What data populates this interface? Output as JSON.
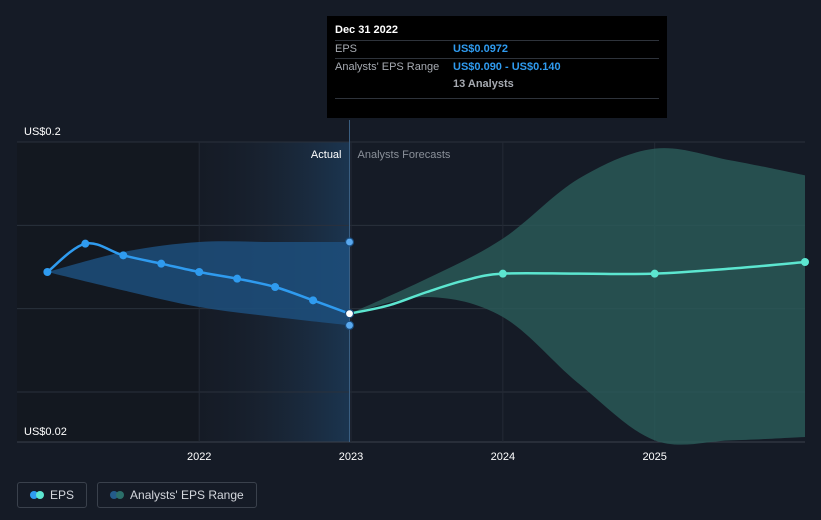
{
  "chart_data": {
    "type": "line",
    "title": "",
    "ylim": [
      0.02,
      0.2
    ],
    "y_labels": {
      "top": "US$0.2",
      "bottom": "US$0.02"
    },
    "x_ticks": [
      {
        "label": "2022",
        "x": 2022.0
      },
      {
        "label": "2023",
        "x": 2023.0
      },
      {
        "label": "2024",
        "x": 2024.0
      },
      {
        "label": "2025",
        "x": 2025.0
      }
    ],
    "xlim": [
      2020.8,
      2025.99
    ],
    "sections": {
      "actual": "Actual",
      "forecast": "Analysts Forecasts"
    },
    "series": [
      {
        "name": "EPS",
        "color": "#2f9bef",
        "x": [
          2021.0,
          2021.25,
          2021.5,
          2021.75,
          2022.0,
          2022.25,
          2022.5,
          2022.75
        ],
        "y": [
          0.122,
          0.139,
          0.132,
          0.127,
          0.122,
          0.118,
          0.113,
          0.105
        ]
      },
      {
        "name": "EPS forecast",
        "color": "#5ce6d0",
        "x": [
          2022.99,
          2023.25,
          2023.5,
          2023.75,
          2024.0,
          2024.5,
          2025.0,
          2025.5,
          2025.99
        ],
        "y": [
          0.097,
          0.102,
          0.11,
          0.117,
          0.121,
          0.121,
          0.121,
          0.124,
          0.128
        ],
        "marker_x": [
          2024.0,
          2025.0,
          2025.99
        ]
      }
    ],
    "actual_range": {
      "x": [
        2021.0,
        2021.5,
        2022.0,
        2022.5,
        2022.99
      ],
      "high": [
        0.122,
        0.134,
        0.14,
        0.14,
        0.14
      ],
      "low": [
        0.122,
        0.111,
        0.101,
        0.095,
        0.09
      ]
    },
    "forecast_range": {
      "name": "Analysts' EPS Range",
      "x": [
        2022.99,
        2023.5,
        2024.0,
        2024.5,
        2025.0,
        2025.5,
        2025.99
      ],
      "high": [
        0.097,
        0.118,
        0.142,
        0.178,
        0.196,
        0.189,
        0.18
      ],
      "low": [
        0.097,
        0.107,
        0.095,
        0.055,
        0.021,
        0.021,
        0.023
      ]
    },
    "grid": true,
    "legend_position": "bottom-left"
  },
  "tooltip": {
    "date": "Dec 31 2022",
    "eps_label": "EPS",
    "eps_value": "US$0.0972",
    "range_label": "Analysts' EPS Range",
    "range_value": "US$0.090 - US$0.140",
    "analysts": "13 Analysts"
  },
  "legend": {
    "eps": "EPS",
    "range": "Analysts' EPS Range",
    "eps_color": "#2f9bef",
    "range_color": "#2b6f6a"
  }
}
